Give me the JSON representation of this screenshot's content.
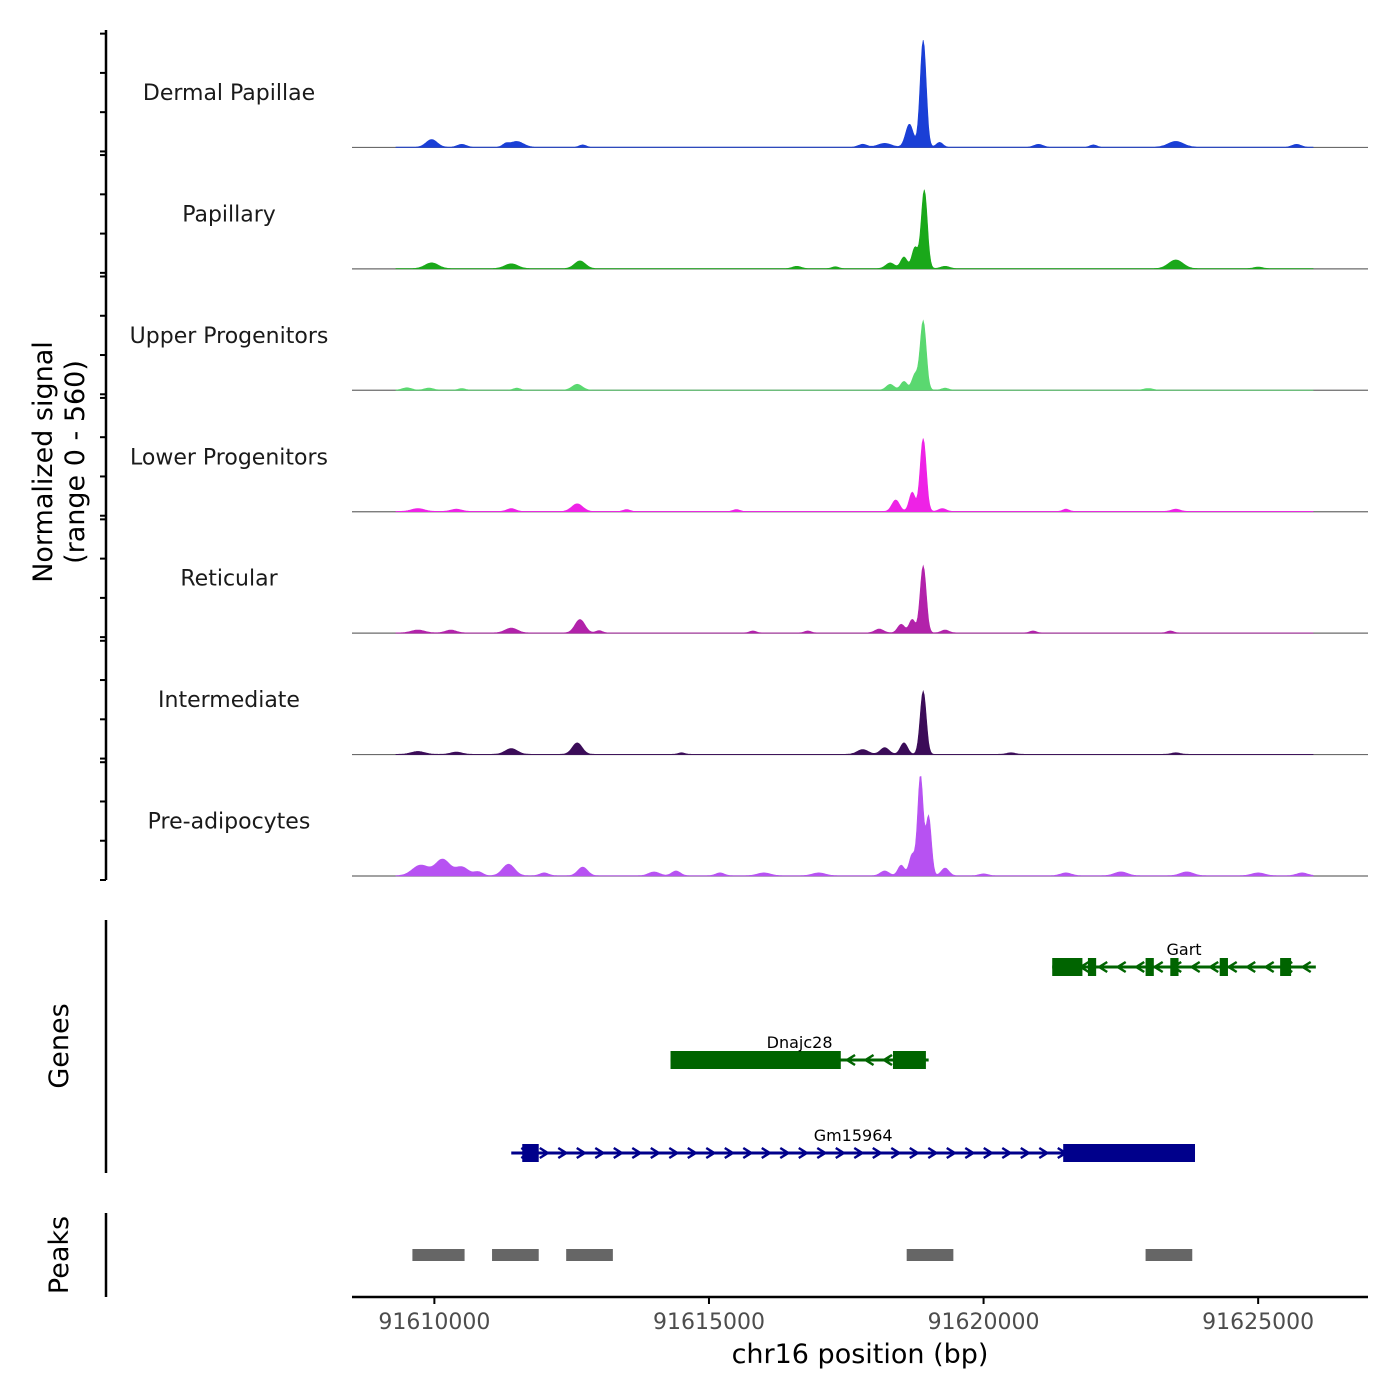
{
  "chart_data": {
    "type": "area",
    "title": "",
    "xlabel": "chr16 position (bp)",
    "ylabel": "Normalized signal\n(range 0 - 560)",
    "ylabel_lines": [
      "Normalized signal",
      "(range 0 - 560)"
    ],
    "ylim": [
      0,
      560
    ],
    "xlim": [
      91608500,
      91627000
    ],
    "x_ticks": [
      91610000,
      91615000,
      91620000,
      91625000
    ],
    "x_tick_labels": [
      "91610000",
      "91615000",
      "91620000",
      "91625000"
    ],
    "tracks": [
      {
        "name": "Dermal Papillae",
        "color": "#1a3fd6",
        "peaks": [
          [
            91609950,
            40,
            100
          ],
          [
            91610500,
            15,
            80
          ],
          [
            91611500,
            30,
            120
          ],
          [
            91611300,
            15,
            60
          ],
          [
            91612700,
            12,
            60
          ],
          [
            91617800,
            15,
            80
          ],
          [
            91618200,
            20,
            120
          ],
          [
            91618650,
            120,
            70
          ],
          [
            91618900,
            560,
            55
          ],
          [
            91619200,
            25,
            60
          ],
          [
            91621000,
            15,
            80
          ],
          [
            91622000,
            12,
            60
          ],
          [
            91623500,
            30,
            140
          ],
          [
            91625700,
            15,
            80
          ]
        ]
      },
      {
        "name": "Papillary",
        "color": "#1aa81a",
        "peaks": [
          [
            91609950,
            30,
            120
          ],
          [
            91611400,
            25,
            120
          ],
          [
            91612650,
            40,
            100
          ],
          [
            91616600,
            12,
            80
          ],
          [
            91617300,
            10,
            60
          ],
          [
            91618300,
            30,
            80
          ],
          [
            91618550,
            60,
            60
          ],
          [
            91618750,
            110,
            55
          ],
          [
            91618920,
            410,
            55
          ],
          [
            91619300,
            12,
            80
          ],
          [
            91623500,
            45,
            130
          ],
          [
            91625000,
            8,
            80
          ]
        ]
      },
      {
        "name": "Upper Progenitors",
        "color": "#5ad870",
        "peaks": [
          [
            91609500,
            12,
            80
          ],
          [
            91609900,
            10,
            80
          ],
          [
            91610500,
            8,
            60
          ],
          [
            91611500,
            10,
            60
          ],
          [
            91612600,
            30,
            90
          ],
          [
            91618300,
            30,
            70
          ],
          [
            91618550,
            45,
            60
          ],
          [
            91618750,
            80,
            55
          ],
          [
            91618900,
            360,
            55
          ],
          [
            91619300,
            10,
            60
          ],
          [
            91623000,
            8,
            80
          ]
        ]
      },
      {
        "name": "Lower Progenitors",
        "color": "#ee22e6",
        "peaks": [
          [
            91609700,
            15,
            120
          ],
          [
            91610400,
            12,
            100
          ],
          [
            91611400,
            15,
            80
          ],
          [
            91612600,
            40,
            100
          ],
          [
            91613500,
            10,
            60
          ],
          [
            91615500,
            10,
            60
          ],
          [
            91618400,
            60,
            70
          ],
          [
            91618700,
            100,
            55
          ],
          [
            91618900,
            380,
            55
          ],
          [
            91619250,
            15,
            70
          ],
          [
            91621500,
            12,
            60
          ],
          [
            91623500,
            12,
            80
          ]
        ]
      },
      {
        "name": "Reticular",
        "color": "#b222aa",
        "peaks": [
          [
            91609700,
            15,
            120
          ],
          [
            91610300,
            15,
            100
          ],
          [
            91611400,
            25,
            110
          ],
          [
            91612650,
            70,
            90
          ],
          [
            91613000,
            12,
            60
          ],
          [
            91615800,
            10,
            60
          ],
          [
            91616800,
            10,
            60
          ],
          [
            91618100,
            20,
            80
          ],
          [
            91618500,
            45,
            65
          ],
          [
            91618700,
            70,
            55
          ],
          [
            91618900,
            350,
            55
          ],
          [
            91619300,
            15,
            70
          ],
          [
            91620900,
            10,
            60
          ],
          [
            91623400,
            10,
            60
          ]
        ]
      },
      {
        "name": "Intermediate",
        "color": "#3b0c58",
        "peaks": [
          [
            91609700,
            15,
            120
          ],
          [
            91610400,
            12,
            100
          ],
          [
            91611400,
            30,
            110
          ],
          [
            91612600,
            60,
            90
          ],
          [
            91614500,
            8,
            60
          ],
          [
            91617800,
            25,
            100
          ],
          [
            91618200,
            35,
            80
          ],
          [
            91618550,
            60,
            65
          ],
          [
            91618900,
            330,
            55
          ],
          [
            91620500,
            8,
            80
          ],
          [
            91623500,
            8,
            80
          ]
        ]
      },
      {
        "name": "Pre-adipocytes",
        "color": "#b752f2",
        "peaks": [
          [
            91609750,
            55,
            150
          ],
          [
            91610150,
            85,
            130
          ],
          [
            91610500,
            45,
            120
          ],
          [
            91610800,
            20,
            80
          ],
          [
            91611350,
            60,
            110
          ],
          [
            91612000,
            15,
            80
          ],
          [
            91612700,
            45,
            90
          ],
          [
            91614000,
            20,
            100
          ],
          [
            91614400,
            25,
            80
          ],
          [
            91615200,
            15,
            80
          ],
          [
            91616000,
            15,
            120
          ],
          [
            91617000,
            15,
            120
          ],
          [
            91618200,
            25,
            80
          ],
          [
            91618500,
            55,
            60
          ],
          [
            91618700,
            110,
            55
          ],
          [
            91618850,
            520,
            50
          ],
          [
            91619000,
            310,
            50
          ],
          [
            91619300,
            40,
            70
          ],
          [
            91620000,
            10,
            80
          ],
          [
            91621500,
            15,
            100
          ],
          [
            91622500,
            20,
            120
          ],
          [
            91623700,
            20,
            120
          ],
          [
            91625000,
            15,
            120
          ],
          [
            91625800,
            15,
            100
          ]
        ]
      }
    ],
    "genes_title": "Genes",
    "genes": [
      {
        "name": "Gart",
        "strand": "-",
        "color": "#006400",
        "start": 91621250,
        "end": 91626050,
        "exons": [
          [
            91621250,
            91621800
          ],
          [
            91621900,
            91622050
          ],
          [
            91622950,
            91623100
          ],
          [
            91623400,
            91623550
          ],
          [
            91624300,
            91624450
          ],
          [
            91625400,
            91625600
          ]
        ]
      },
      {
        "name": "Dnajc28",
        "strand": "-",
        "color": "#006400",
        "start": 91614300,
        "end": 91619000,
        "exons": [
          [
            91614300,
            91617400
          ],
          [
            91618350,
            91618950
          ]
        ]
      },
      {
        "name": "Gm15964",
        "strand": "+",
        "color": "#00008b",
        "start": 91611400,
        "end": 91623850,
        "exons": [
          [
            91611600,
            91611900
          ],
          [
            91621450,
            91623850
          ]
        ]
      }
    ],
    "peaks_title": "Peaks",
    "peak_regions": [
      [
        91609600,
        91610550
      ],
      [
        91611050,
        91611900
      ],
      [
        91612400,
        91613250
      ],
      [
        91618600,
        91619450
      ],
      [
        91622950,
        91623800
      ]
    ]
  }
}
